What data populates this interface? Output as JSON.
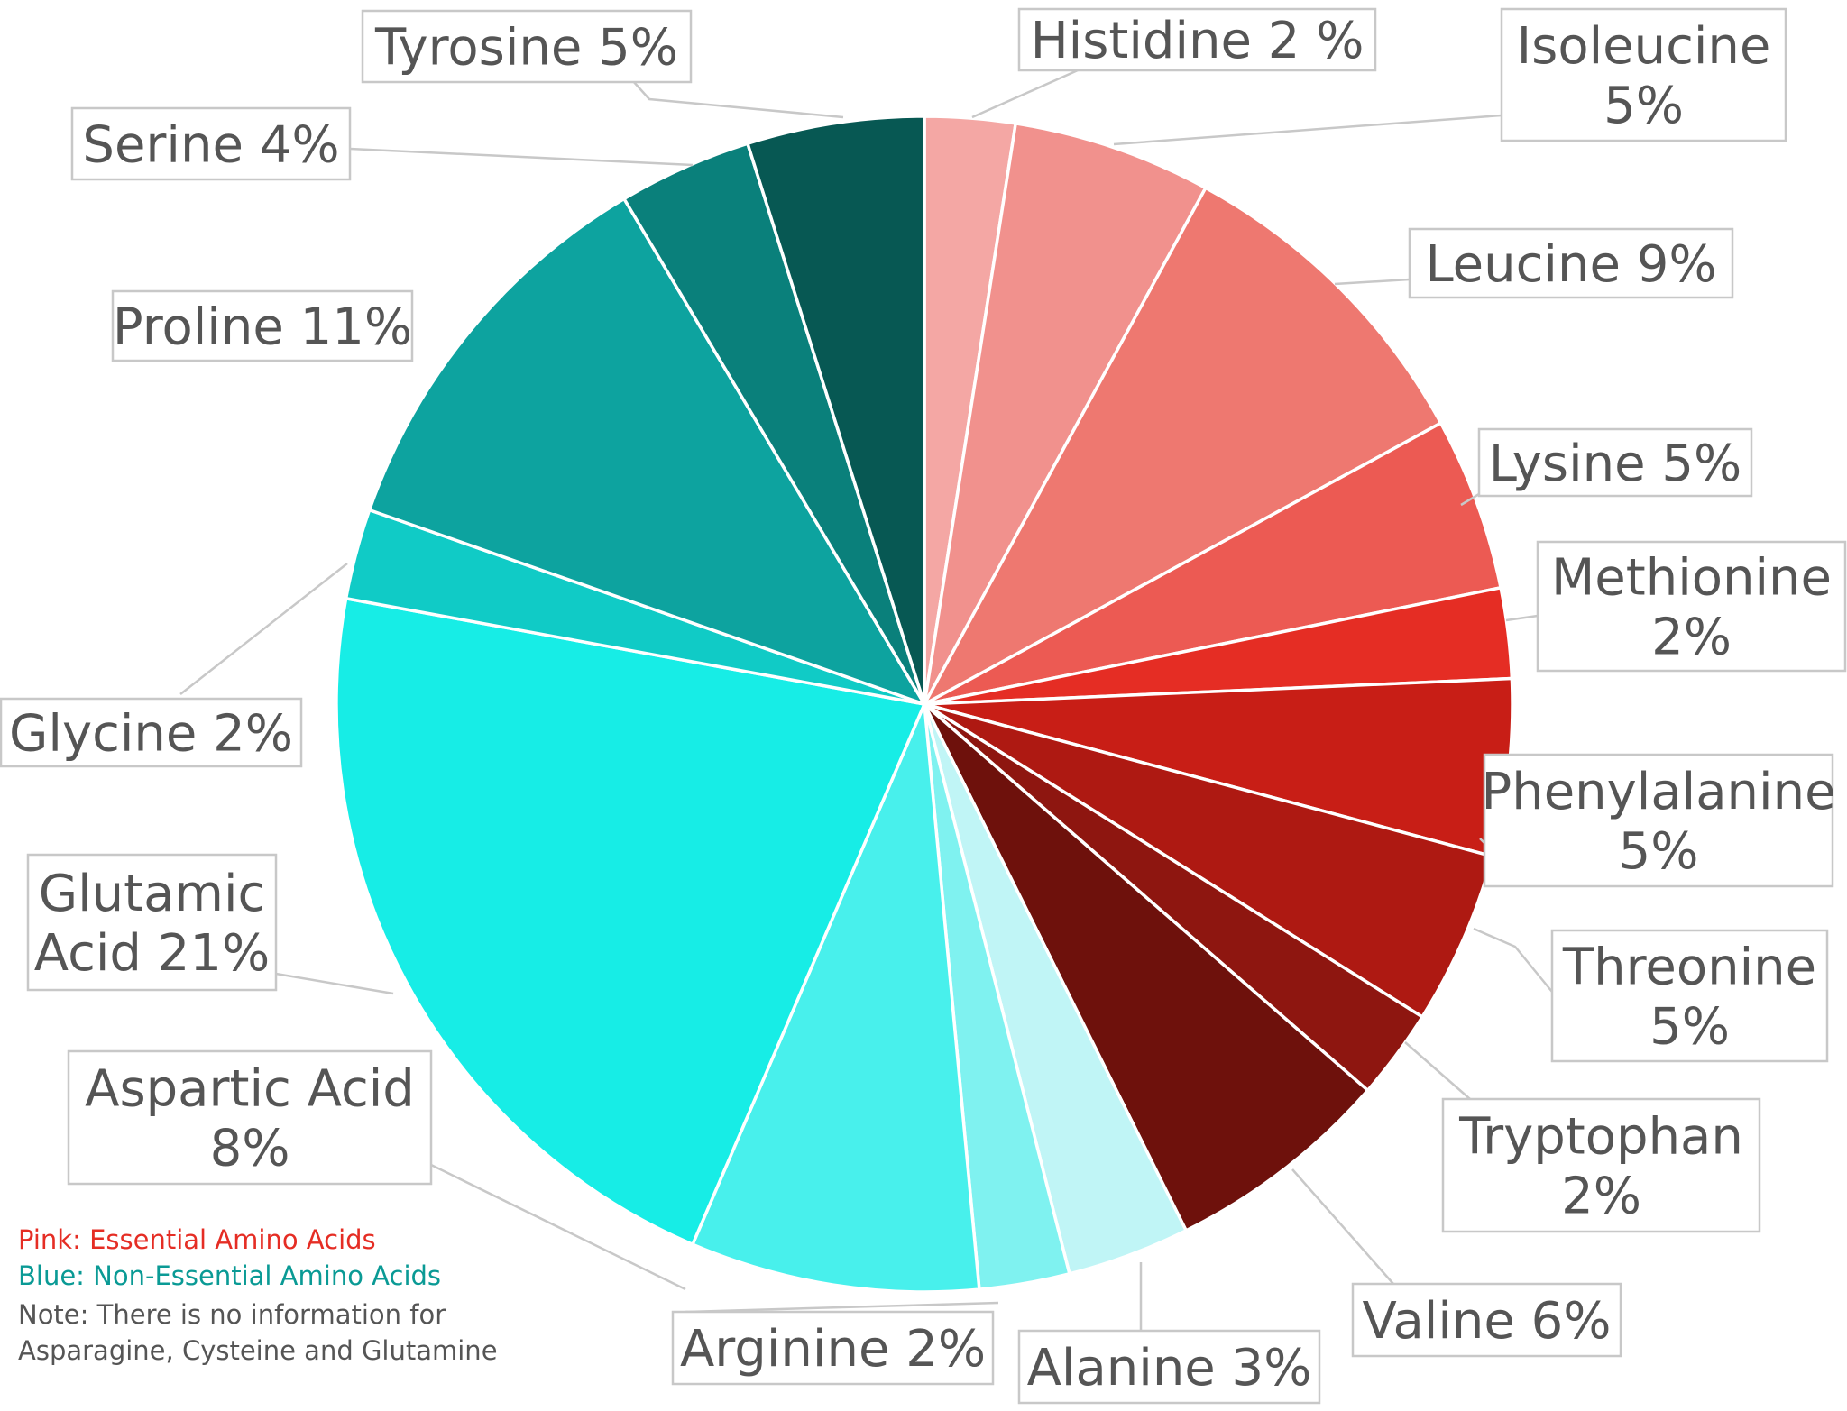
{
  "chart_data": {
    "type": "pie",
    "title": "",
    "slices": [
      {
        "label": "Histidine 2 %",
        "value": 2.5,
        "color": "#F4A7A4"
      },
      {
        "label": "Isoleucine 5%",
        "value": 5.5,
        "color": "#F1918D"
      },
      {
        "label": "Leucine 9%",
        "value": 9.2,
        "color": "#EE7870"
      },
      {
        "label": "Lysine 5%",
        "value": 4.8,
        "color": "#EC5A53"
      },
      {
        "label": "Methionine 2%",
        "value": 2.5,
        "color": "#E52D24"
      },
      {
        "label": "Phenylalanine 5%",
        "value": 4.9,
        "color": "#C81E16"
      },
      {
        "label": "Threonine 5%",
        "value": 4.8,
        "color": "#AE1912"
      },
      {
        "label": "Tryptophan 2%",
        "value": 2.5,
        "color": "#8E1610"
      },
      {
        "label": "Valine 6%",
        "value": 6.3,
        "color": "#6E110C"
      },
      {
        "label": "Alanine 3%",
        "value": 3.4,
        "color": "#C0F5F6"
      },
      {
        "label": "Arginine 2%",
        "value": 2.5,
        "color": "#7FF2F0"
      },
      {
        "label": "Aspartic Acid 8%",
        "value": 8.0,
        "color": "#48F0EC"
      },
      {
        "label": "Glutamic Acid 21%",
        "value": 21.6,
        "color": "#17EDE6"
      },
      {
        "label": "Glycine 2%",
        "value": 2.5,
        "color": "#10CBC6"
      },
      {
        "label": "Proline 11%",
        "value": 11.2,
        "color": "#0DA39F"
      },
      {
        "label": "Serine 4%",
        "value": 3.7,
        "color": "#0A807B"
      },
      {
        "label": "Tyrosine 5%",
        "value": 4.9,
        "color": "#075853"
      }
    ]
  },
  "labels": {
    "histidine": [
      "Histidine 2 %"
    ],
    "isoleucine": [
      "Isoleucine",
      "5%"
    ],
    "leucine": [
      "Leucine 9%"
    ],
    "lysine": [
      "Lysine 5%"
    ],
    "methionine": [
      "Methionine",
      "2%"
    ],
    "phenylalanine": [
      "Phenylalanine",
      "5%"
    ],
    "threonine": [
      "Threonine",
      "5%"
    ],
    "tryptophan": [
      "Tryptophan",
      "2%"
    ],
    "valine": [
      "Valine 6%"
    ],
    "alanine": [
      "Alanine 3%"
    ],
    "arginine": [
      "Arginine 2%"
    ],
    "aspartic": [
      "Aspartic Acid",
      "8%"
    ],
    "glutamic": [
      "Glutamic",
      "Acid 21%"
    ],
    "glycine": [
      "Glycine 2%"
    ],
    "proline": [
      "Proline 11%"
    ],
    "serine": [
      "Serine 4%"
    ],
    "tyrosine": [
      "Tyrosine 5%"
    ]
  },
  "legend": {
    "pink": "Pink: Essential Amino Acids",
    "blue": "Blue: Non-Essential Amino Acids",
    "note_line1": "Note: There is no information for",
    "note_line2": "Asparagine, Cysteine and Glutamine",
    "pink_color": "#E52D24",
    "blue_color": "#0A9A95",
    "note_color": "#555555"
  }
}
